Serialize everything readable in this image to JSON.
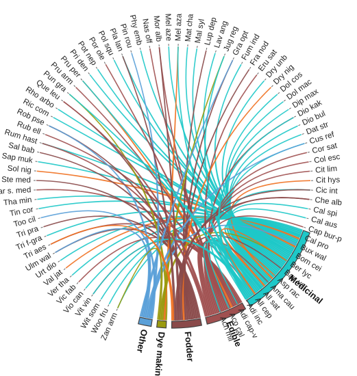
{
  "chart_data": {
    "type": "chord",
    "title": "",
    "categories": [
      {
        "name": "Medicinal",
        "color": "#1ec8c8"
      },
      {
        "name": "Edible",
        "color": "#a05050"
      },
      {
        "name": "Fodder",
        "color": "#8a4a4a"
      },
      {
        "name": "Dye making",
        "color": "#9a9a10"
      },
      {
        "name": "Other",
        "color": "#5aa0d8"
      }
    ],
    "extra_color": "#f07020",
    "species": [
      "Zan arm",
      "Woo fru",
      "Wit som",
      "Vit vin",
      "Vio can",
      "Vic fab",
      "Ver tha",
      "Val jat",
      "Urt dio",
      "Ulm wal",
      "Tri aes",
      "Tri f-gra",
      "Tri pra",
      "Too cil",
      "Tin cor",
      "Tha min",
      "Tar s. med",
      "Ste med",
      "Sol nig",
      "Sap muk",
      "Sal bab",
      "Rum hast",
      "Rub ell",
      "Rob pse",
      "Ric com",
      "Rho arbo",
      "Que leu",
      "Pun gra",
      "Pru arm",
      "Pru per",
      "Pri den",
      "Pot nep",
      "Por ole",
      "Pol squ",
      "Pla lan",
      "Pin rou",
      "Phy emb",
      "Nas off",
      "Mor alb",
      "Mel aze",
      "Mel aza",
      "Mat cha",
      "Mal syl",
      "Lup dep",
      "Lav ang",
      "Jug reg",
      "Gra opt",
      "Fum ind",
      "Fra nod",
      "Eru sat",
      "Dry unb",
      "Dry nig",
      "Dol cos",
      "Dol mac",
      "Dip max",
      "Dio kak",
      "Dio bul",
      "Dat str",
      "Cus ref",
      "Cor sat",
      "Col esc",
      "Cit lim",
      "Cit hys",
      "Cic int",
      "Che alb",
      "Cal spi",
      "Cal aus",
      "Cap bur-p",
      "Cal pro",
      "Bux wal",
      "Bom cei",
      "Ber lyc",
      "Bau var",
      "Asp rac",
      "Ama cau",
      "All sat",
      "All cep",
      "Adi inc",
      "Adi cap-v",
      "Aco cal",
      "Ach mil"
    ],
    "links": [
      [
        "Zan arm",
        "Medicinal"
      ],
      [
        "Woo fru",
        "Medicinal"
      ],
      [
        "Wit som",
        "Medicinal"
      ],
      [
        "Vit vin",
        "Edible"
      ],
      [
        "Vio can",
        "Medicinal"
      ],
      [
        "Vic fab",
        "Edible"
      ],
      [
        "Ver tha",
        "Medicinal"
      ],
      [
        "Val jat",
        "Medicinal"
      ],
      [
        "Urt dio",
        "Medicinal"
      ],
      [
        "Ulm wal",
        "Fodder"
      ],
      [
        "Tri aes",
        "Edible"
      ],
      [
        "Tri f-gra",
        "Medicinal"
      ],
      [
        "Tri pra",
        "Fodder"
      ],
      [
        "Too cil",
        "Other"
      ],
      [
        "Tin cor",
        "Medicinal"
      ],
      [
        "Tha min",
        "Medicinal"
      ],
      [
        "Tar s. med",
        "Edible"
      ],
      [
        "Ste med",
        "Fodder"
      ],
      [
        "Sol nig",
        "Medicinal"
      ],
      [
        "Sap muk",
        "Medicinal"
      ],
      [
        "Sal bab",
        "Fodder"
      ],
      [
        "Rum hast",
        "Medicinal"
      ],
      [
        "Rub ell",
        "Edible"
      ],
      [
        "Rob pse",
        "Fodder"
      ],
      [
        "Ric com",
        "Medicinal"
      ],
      [
        "Rho arbo",
        "Medicinal"
      ],
      [
        "Que leu",
        "Fodder"
      ],
      [
        "Pun gra",
        "Dye making"
      ],
      [
        "Pru arm",
        "Edible"
      ],
      [
        "Pru per",
        "Edible"
      ],
      [
        "Pri den",
        "Medicinal"
      ],
      [
        "Pot nep",
        "Medicinal"
      ],
      [
        "Por ole",
        "Edible"
      ],
      [
        "Pol squ",
        "Medicinal"
      ],
      [
        "Pla lan",
        "Medicinal"
      ],
      [
        "Pin rou",
        "Other"
      ],
      [
        "Phy emb",
        "Medicinal"
      ],
      [
        "Nas off",
        "Edible"
      ],
      [
        "Mor alb",
        "Edible"
      ],
      [
        "Mel aze",
        "Medicinal"
      ],
      [
        "Mel aza",
        "Dye making"
      ],
      [
        "Mat cha",
        "Medicinal"
      ],
      [
        "Mal syl",
        "Medicinal"
      ],
      [
        "Lup dep",
        "Fodder"
      ],
      [
        "Lav ang",
        "Medicinal"
      ],
      [
        "Jug reg",
        "Dye making"
      ],
      [
        "Gra opt",
        "Fodder"
      ],
      [
        "Fum ind",
        "Medicinal"
      ],
      [
        "Fra nod",
        "Fodder"
      ],
      [
        "Eru sat",
        "Edible"
      ],
      [
        "Dry unb",
        "Medicinal"
      ],
      [
        "Dry nig",
        "Fodder"
      ],
      [
        "Dol cos",
        "Medicinal"
      ],
      [
        "Dol mac",
        "Medicinal"
      ],
      [
        "Dip max",
        "Medicinal"
      ],
      [
        "Dio kak",
        "Edible"
      ],
      [
        "Dio bul",
        "Medicinal"
      ],
      [
        "Dat str",
        "Medicinal"
      ],
      [
        "Cus ref",
        "Medicinal"
      ],
      [
        "Cor sat",
        "Edible"
      ],
      [
        "Col esc",
        "Edible"
      ],
      [
        "Cit lim",
        "Edible"
      ],
      [
        "Cit hys",
        "Medicinal"
      ],
      [
        "Cic int",
        "Medicinal"
      ],
      [
        "Che alb",
        "Edible"
      ],
      [
        "Cal spi",
        "Medicinal"
      ],
      [
        "Cal aus",
        "Medicinal"
      ],
      [
        "Cap bur-p",
        "Edible"
      ],
      [
        "Cal pro",
        "Medicinal"
      ],
      [
        "Bux wal",
        "Other"
      ],
      [
        "Bom cei",
        "Medicinal"
      ],
      [
        "Ber lyc",
        "Dye making"
      ],
      [
        "Bau var",
        "Fodder"
      ],
      [
        "Asp rac",
        "Medicinal"
      ],
      [
        "Ama cau",
        "Edible"
      ],
      [
        "All sat",
        "Edible"
      ],
      [
        "All cep",
        "Edible"
      ],
      [
        "Adi inc",
        "Medicinal"
      ],
      [
        "Adi cap-v",
        "Medicinal"
      ],
      [
        "Aco cal",
        "Medicinal"
      ],
      [
        "Ach mil",
        "Medicinal"
      ],
      [
        "Jug reg",
        "Medicinal"
      ],
      [
        "Pun gra",
        "Medicinal"
      ],
      [
        "Mor alb",
        "Fodder"
      ],
      [
        "Ber lyc",
        "Medicinal"
      ],
      [
        "Cus ref",
        "Other"
      ],
      [
        "Que leu",
        "Edible"
      ],
      [
        "Rob pse",
        "Other"
      ],
      [
        "Ulm wal",
        "Other"
      ],
      [
        "Mel aza",
        "Medicinal"
      ],
      [
        "Vit vin",
        "Medicinal"
      ],
      [
        "Cic int",
        "Fodder"
      ],
      [
        "Che alb",
        "Fodder"
      ],
      [
        "Pla lan",
        "Fodder"
      ],
      [
        "Gra opt",
        "Other"
      ],
      [
        "Tri aes",
        "Fodder"
      ],
      [
        "Rum hast",
        "Edible"
      ],
      [
        "All sat",
        "Medicinal"
      ],
      [
        "Pru per",
        "Medicinal"
      ],
      [
        "Zan arm",
        "Dye making"
      ],
      [
        "Dio kak",
        "Medicinal"
      ]
    ]
  }
}
